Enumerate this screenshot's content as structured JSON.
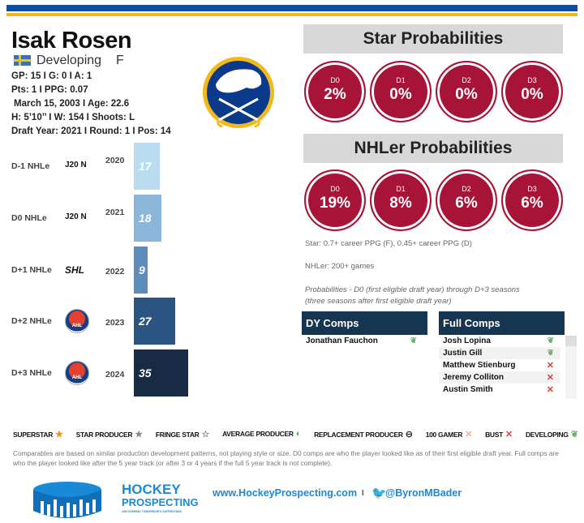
{
  "player": {
    "name": "Isak Rosen",
    "status": "Developing",
    "position": "F",
    "flag_icon": "sweden-flag-icon",
    "line1": "GP: 15 I G: 0 I A: 1",
    "line2": "Pts: 1 I PPG: 0.07",
    "line3": "March 15, 2003 I Age: 22.6",
    "line4": "H: 5’10’’ I W: 154 I Shoots: L",
    "line5": "Draft Year: 2021 I Round: 1 I Pos: 14"
  },
  "team_logo": "buffalo-sabres-logo",
  "nhle": [
    {
      "label": "D-1 NHLe",
      "league": "J20 N",
      "year": "2020",
      "value": 17,
      "color": "#b9dcf0"
    },
    {
      "label": "D0 NHLe",
      "league": "J20 N",
      "year": "2021",
      "value": 18,
      "color": "#8ab6da"
    },
    {
      "label": "D+1 NHLe",
      "league": "SHL",
      "year": "2022",
      "value": 9,
      "color": "#5d8cbb"
    },
    {
      "label": "D+2 NHLe",
      "league": "AHL",
      "year": "2023",
      "value": 27,
      "color": "#2a5583"
    },
    {
      "label": "D+3 NHLe",
      "league": "AHL",
      "year": "2024",
      "value": 35,
      "color": "#172b45"
    }
  ],
  "star": {
    "title": "Star Probabilities",
    "items": [
      {
        "d": "D0",
        "v": "2%"
      },
      {
        "d": "D1",
        "v": "0%"
      },
      {
        "d": "D2",
        "v": "0%"
      },
      {
        "d": "D3",
        "v": "0%"
      }
    ]
  },
  "nhler": {
    "title": "NHLer Probabilities",
    "items": [
      {
        "d": "D0",
        "v": "19%"
      },
      {
        "d": "D1",
        "v": "8%"
      },
      {
        "d": "D2",
        "v": "6%"
      },
      {
        "d": "D3",
        "v": "6%"
      }
    ]
  },
  "notes": {
    "star": "Star: 0.7+ career PPG (F), 0.45+ career PPG (D)",
    "nhler": "NHLer: 200+ games",
    "prob1": "Probabilities - D0 (first eligible draft year) through D+3 seasons",
    "prob2": "(three seasons after first eligible draft year)"
  },
  "dy_comps": {
    "title": "DY Comps",
    "items": [
      {
        "name": "Jonathan Fauchon",
        "icon": "developing"
      }
    ]
  },
  "full_comps": {
    "title": "Full Comps",
    "items": [
      {
        "name": "Josh Lopina",
        "icon": "developing"
      },
      {
        "name": "Justin Gill",
        "icon": "developing"
      },
      {
        "name": "Matthew Stienburg",
        "icon": "bust"
      },
      {
        "name": "Jeremy Colliton",
        "icon": "bust"
      },
      {
        "name": "Austin Smith",
        "icon": "bust"
      }
    ]
  },
  "legend": [
    {
      "label": "SUPERSTAR",
      "glyph": "★",
      "color": "#f28a1a"
    },
    {
      "label": "STAR PRODUCER",
      "glyph": "★",
      "color": "#888"
    },
    {
      "label": "FRINGE STAR",
      "glyph": "☆",
      "color": "#888"
    },
    {
      "label": "AVERAGE PRODUCER",
      "glyph": "◐",
      "color": "#4caf50"
    },
    {
      "label": "REPLACEMENT PRODUCER",
      "glyph": "⊖",
      "color": "#333"
    },
    {
      "label": "100 GAMER",
      "glyph": "✕",
      "color": "#f0a8a0"
    },
    {
      "label": "BUST",
      "glyph": "✕",
      "color": "#d9423a"
    },
    {
      "label": "DEVELOPING",
      "glyph": "❦",
      "color": "#6aad6a"
    }
  ],
  "footnote": "Comparables are based on similar production development patterns, not playing style or size. D0 comps are who the player looked like as of their first eligible draft year. Full comps are who the player looked like after the 5 year track (or after 3 or 4 years if the full 5 year track is not complete).",
  "footer": {
    "brand1": "HOCKEY",
    "brand2": "PROSPECTING",
    "tagline": "UNCOVERING TOMORROW'S SUPERSTARS",
    "url": "www.HockeyProspecting.com",
    "sep": "I",
    "twitter": "@ByronMBader"
  }
}
